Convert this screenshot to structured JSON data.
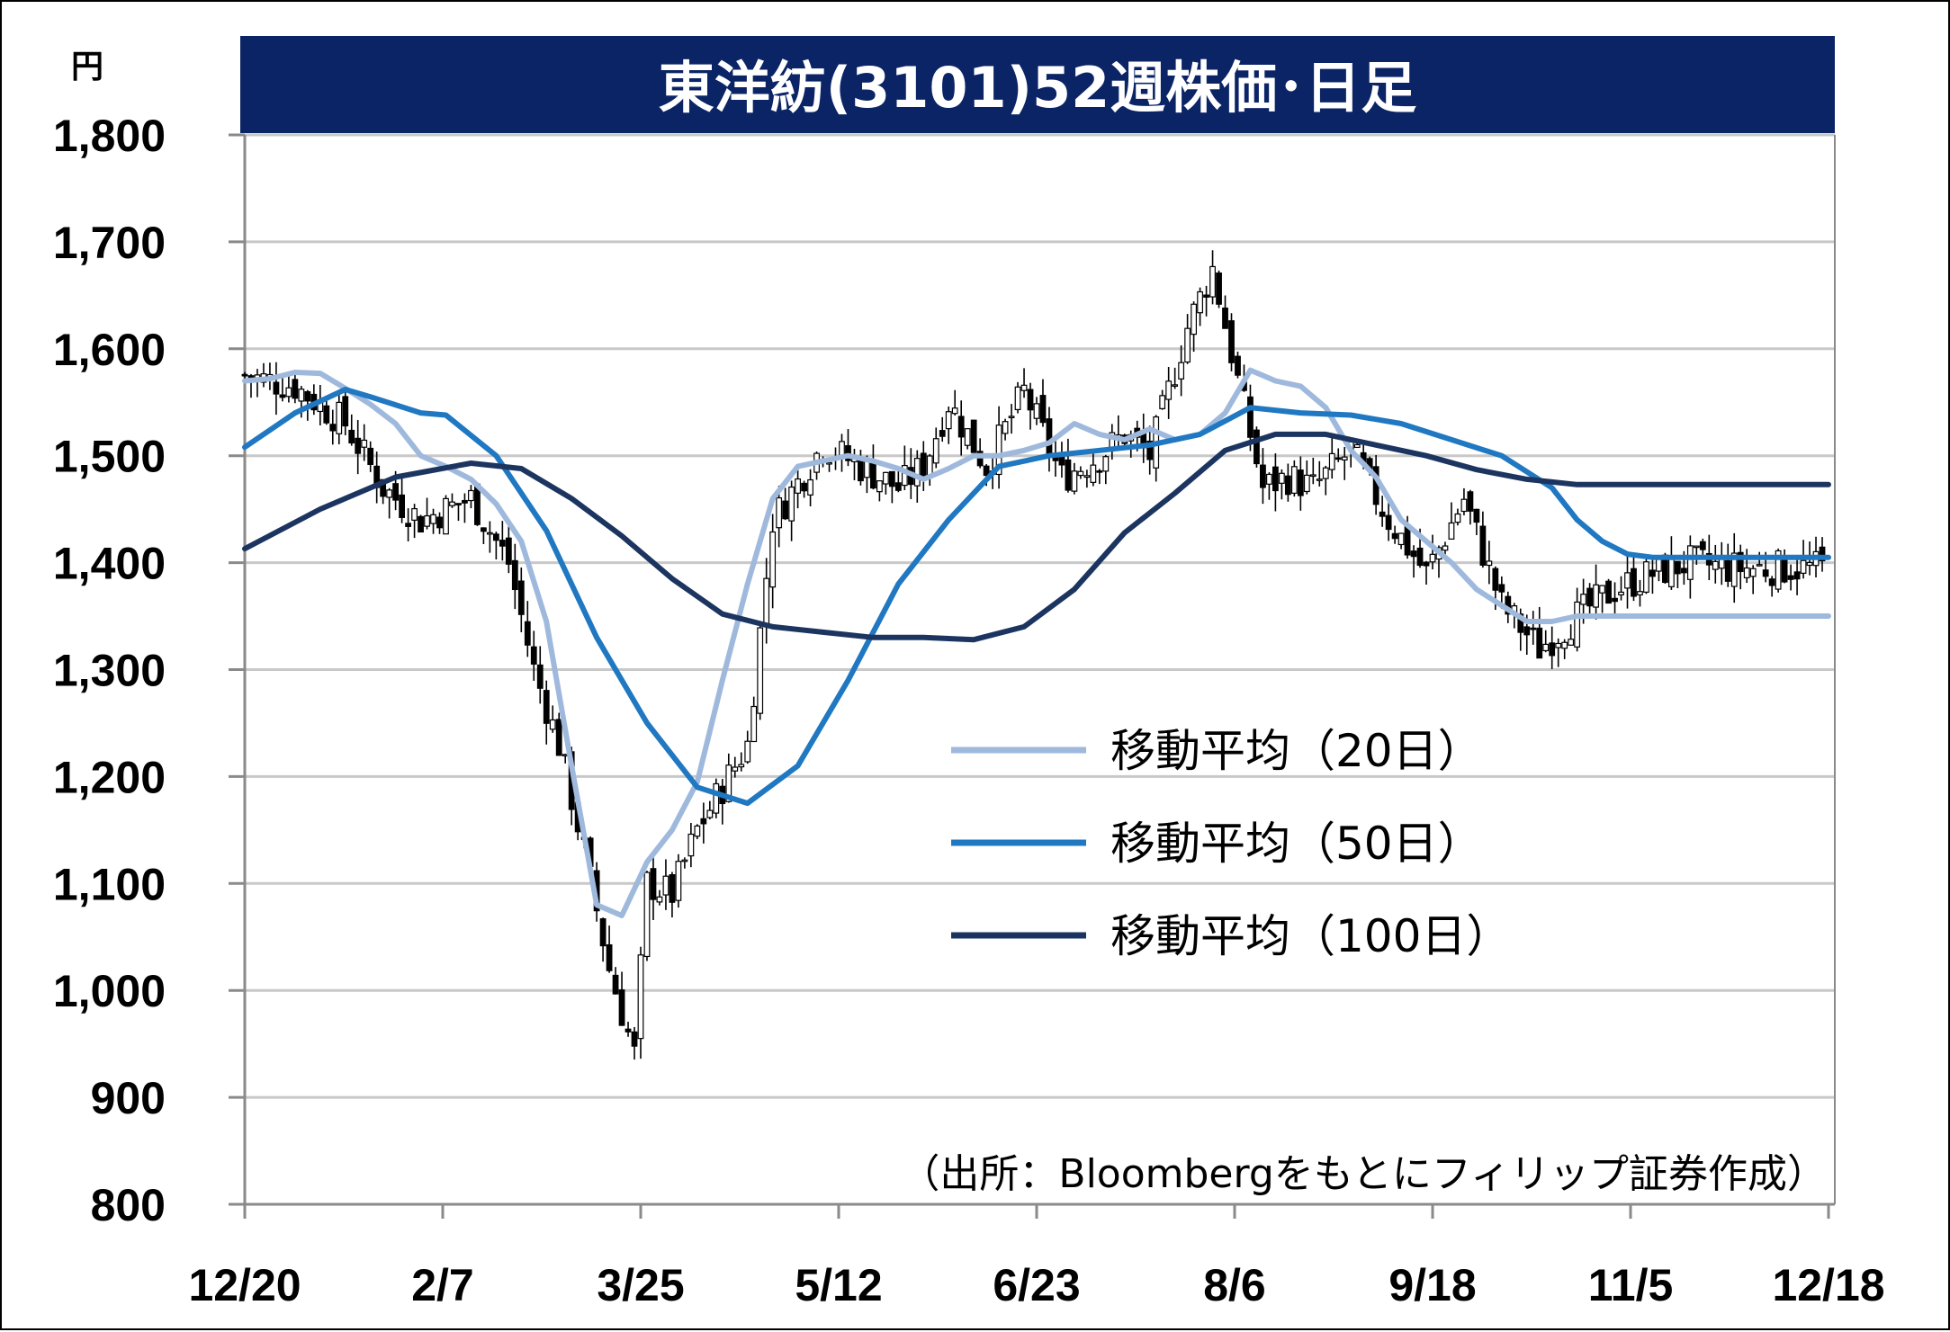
{
  "chart_data": {
    "type": "candlestick-line",
    "title": "東洋紡(3101)52週株価･日足",
    "y_unit": "円",
    "source": "（出所：Bloombergをもとにフィリップ証券作成）",
    "ylim": [
      800,
      1800
    ],
    "yticks": [
      "800",
      "900",
      "1,000",
      "1,100",
      "1,200",
      "1,300",
      "1,400",
      "1,500",
      "1,600",
      "1,700",
      "1,800"
    ],
    "ytick_values": [
      800,
      900,
      1000,
      1100,
      1200,
      1300,
      1400,
      1500,
      1600,
      1700,
      1800
    ],
    "xticks": [
      "12/20",
      "2/7",
      "3/25",
      "5/12",
      "6/23",
      "8/6",
      "9/18",
      "11/5",
      "12/18"
    ],
    "grid": true,
    "legend_position": "center-right",
    "colors": {
      "ma20": "#9fb9dd",
      "ma50": "#1f78c1",
      "ma100": "#1c3560",
      "title_bg": "#0b2466",
      "grid": "#c8c8c8"
    },
    "series": [
      {
        "name": "移動平均（20日）",
        "key": "ma20",
        "x": [
          0,
          4,
          8,
          12,
          16,
          20,
          24,
          28,
          32,
          36,
          40,
          44,
          48,
          52,
          56,
          60,
          64,
          68,
          72,
          76,
          80,
          84,
          88,
          92,
          96,
          100,
          104,
          108,
          112,
          116,
          120,
          124,
          128,
          132,
          136,
          140,
          144,
          148,
          152,
          156,
          160,
          164,
          168,
          172,
          176,
          180,
          184,
          188,
          192,
          196,
          200,
          204,
          208,
          212,
          216,
          220,
          224,
          228,
          232,
          236,
          240,
          244,
          248,
          252
        ],
        "values": [
          1570,
          1572,
          1578,
          1577,
          1563,
          1548,
          1530,
          1500,
          1490,
          1478,
          1455,
          1420,
          1345,
          1210,
          1080,
          1070,
          1120,
          1150,
          1195,
          1290,
          1380,
          1460,
          1490,
          1495,
          1500,
          1495,
          1488,
          1478,
          1488,
          1500,
          1500,
          1505,
          1512,
          1530,
          1520,
          1515,
          1525,
          1515,
          1520,
          1540,
          1580,
          1570,
          1565,
          1545,
          1505,
          1480,
          1440,
          1420,
          1400,
          1375,
          1360,
          1345,
          1345,
          1350,
          1350,
          1350,
          1350,
          1350,
          1350,
          1350,
          1350,
          1350,
          1350,
          1350
        ]
      },
      {
        "name": "移動平均（50日）",
        "key": "ma50",
        "x": [
          0,
          8,
          16,
          20,
          28,
          32,
          40,
          48,
          56,
          64,
          72,
          80,
          88,
          96,
          104,
          112,
          120,
          128,
          136,
          144,
          152,
          160,
          168,
          176,
          184,
          192,
          200,
          208,
          212,
          216,
          220,
          224,
          228,
          232,
          236,
          240,
          244,
          248,
          252
        ],
        "values": [
          1508,
          1540,
          1562,
          1555,
          1540,
          1538,
          1500,
          1430,
          1330,
          1250,
          1190,
          1175,
          1210,
          1290,
          1380,
          1440,
          1490,
          1500,
          1505,
          1510,
          1520,
          1545,
          1540,
          1538,
          1530,
          1515,
          1500,
          1470,
          1440,
          1420,
          1408,
          1405,
          1405,
          1405,
          1405,
          1405,
          1405,
          1405,
          1405
        ]
      },
      {
        "name": "移動平均（100日）",
        "key": "ma100",
        "x": [
          0,
          12,
          24,
          36,
          44,
          52,
          60,
          68,
          76,
          84,
          92,
          100,
          108,
          116,
          124,
          132,
          140,
          148,
          156,
          164,
          172,
          180,
          188,
          196,
          204,
          212,
          220,
          228,
          236,
          244,
          252
        ],
        "values": [
          1413,
          1450,
          1480,
          1493,
          1488,
          1460,
          1425,
          1385,
          1352,
          1340,
          1335,
          1330,
          1330,
          1328,
          1340,
          1375,
          1428,
          1465,
          1505,
          1520,
          1520,
          1510,
          1500,
          1487,
          1478,
          1473,
          1473,
          1473,
          1473,
          1473,
          1473
        ]
      }
    ],
    "candles_anchor_x": [
      0,
      8,
      16,
      22,
      28,
      36,
      42,
      46,
      50,
      54,
      58,
      62,
      64,
      68,
      72,
      76,
      80,
      84,
      88,
      92,
      98,
      104,
      108,
      112,
      118,
      124,
      130,
      136,
      140,
      144,
      150,
      154,
      158,
      162,
      166,
      170,
      176,
      182,
      188,
      194,
      200,
      206,
      212,
      218,
      224,
      230,
      236,
      242,
      248,
      252
    ],
    "candles_anchor_close": [
      1575,
      1565,
      1530,
      1470,
      1440,
      1460,
      1400,
      1300,
      1230,
      1130,
      1020,
      940,
      1100,
      1090,
      1150,
      1190,
      1230,
      1440,
      1475,
      1510,
      1490,
      1470,
      1490,
      1550,
      1490,
      1560,
      1480,
      1500,
      1520,
      1500,
      1620,
      1675,
      1570,
      1470,
      1480,
      1470,
      1505,
      1440,
      1390,
      1460,
      1360,
      1320,
      1350,
      1375,
      1390,
      1400,
      1395,
      1395,
      1395,
      1395
    ]
  }
}
